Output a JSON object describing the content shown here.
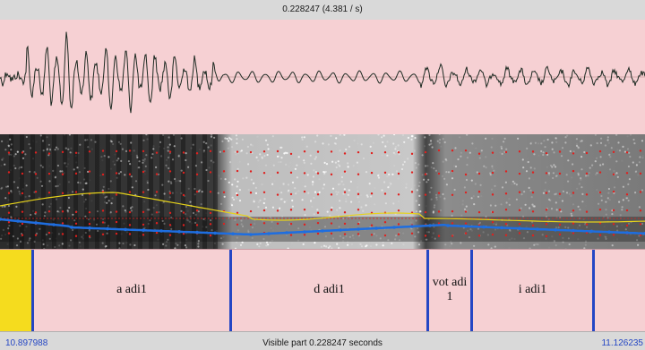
{
  "header": {
    "selection_duration": "0.228247 (4.381 / s)"
  },
  "tier": {
    "intervals": [
      {
        "label": "a adi1"
      },
      {
        "label": "d adi1"
      },
      {
        "label": "vot adi\n1"
      },
      {
        "label": "i adi1"
      }
    ]
  },
  "footer": {
    "start_time": "10.897988",
    "visible_part": "Visible part 0.228247 seconds",
    "end_time": "11.126235"
  },
  "colors": {
    "waveform_bg": "#f6d0d3",
    "boundary": "#2446c4",
    "pitch": "#1e6ee0",
    "intensity": "#e6d21a",
    "formant": "#e0201e",
    "selection": "#f5dc1e"
  }
}
